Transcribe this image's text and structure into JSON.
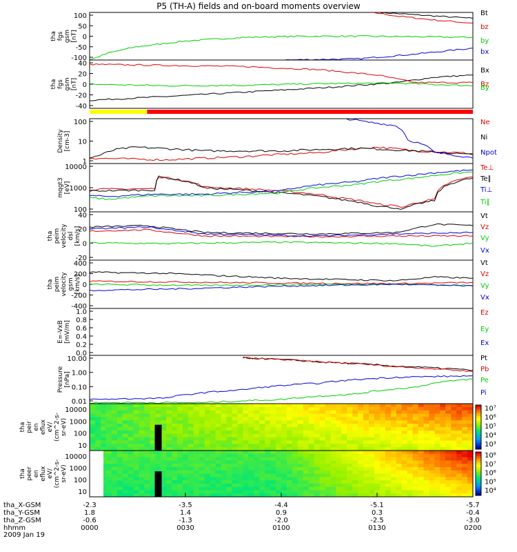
{
  "title": "P5 (TH-A) fields and on-board moments overview",
  "colors": {
    "black": "#000000",
    "red": "#dd0000",
    "green": "#00cc00",
    "blue": "#0000dd"
  },
  "chart_data": [
    {
      "type": "line",
      "id": "p1",
      "ylabel": [
        "tha",
        "fgs",
        "gsm",
        "[nT]"
      ],
      "yticks": [
        "100",
        "50",
        "0",
        "-50",
        "-100"
      ],
      "ylim": [
        -100,
        100
      ],
      "series": [
        {
          "name": "Bt",
          "color": "black",
          "points": [
            [
              0.76,
              100
            ],
            [
              0.85,
              90
            ],
            [
              0.93,
              82
            ],
            [
              1.0,
              75
            ]
          ]
        },
        {
          "name": "bz",
          "color": "red",
          "points": [
            [
              0.74,
              100
            ],
            [
              0.8,
              85
            ],
            [
              0.9,
              68
            ],
            [
              1.0,
              55
            ]
          ]
        },
        {
          "name": "by",
          "color": "green",
          "points": [
            [
              0,
              -100
            ],
            [
              0.05,
              -70
            ],
            [
              0.12,
              -45
            ],
            [
              0.25,
              -20
            ],
            [
              0.4,
              -5
            ],
            [
              0.55,
              0
            ],
            [
              0.7,
              0
            ],
            [
              0.85,
              -2
            ],
            [
              1.0,
              -5
            ]
          ]
        },
        {
          "name": "bx",
          "color": "blue",
          "points": [
            [
              0.5,
              -100
            ],
            [
              0.7,
              -95
            ],
            [
              0.85,
              -75
            ],
            [
              1.0,
              -50
            ]
          ]
        }
      ]
    },
    {
      "type": "line",
      "id": "p2",
      "ylabel": [
        "tha",
        "fgs",
        "gsm",
        "[nT]"
      ],
      "yticks": [
        "40",
        "20",
        "0",
        "-20",
        "-40"
      ],
      "ylim": [
        -50,
        40
      ],
      "series": [
        {
          "name": "Bx",
          "color": "black",
          "points": [
            [
              0,
              -35
            ],
            [
              0.2,
              -28
            ],
            [
              0.4,
              -20
            ],
            [
              0.6,
              -12
            ],
            [
              0.8,
              -2
            ],
            [
              0.9,
              8
            ],
            [
              1.0,
              12
            ]
          ]
        },
        {
          "name": "Bz",
          "color": "red",
          "points": [
            [
              0,
              32
            ],
            [
              0.2,
              30
            ],
            [
              0.4,
              28
            ],
            [
              0.6,
              22
            ],
            [
              0.75,
              12
            ],
            [
              0.85,
              -2
            ],
            [
              1.0,
              -2
            ]
          ]
        },
        {
          "name": "By",
          "color": "green",
          "points": [
            [
              0,
              -5
            ],
            [
              0.2,
              -8
            ],
            [
              0.4,
              -7
            ],
            [
              0.6,
              -4
            ],
            [
              0.8,
              -3
            ],
            [
              1.0,
              -8
            ]
          ]
        }
      ]
    },
    {
      "type": "line",
      "id": "p4",
      "ylabel": [
        "Density",
        "[cm-3]"
      ],
      "yticks": [
        "100",
        "10",
        "1"
      ],
      "log": true,
      "ylim": [
        0.5,
        150
      ],
      "series": [
        {
          "name": "Ne",
          "color": "red",
          "points": [
            [
              0,
              1.0
            ],
            [
              0.2,
              0.8
            ],
            [
              0.4,
              1.2
            ],
            [
              0.6,
              2.0
            ],
            [
              0.75,
              4.0
            ],
            [
              0.85,
              2.5
            ],
            [
              1.0,
              1.8
            ]
          ]
        },
        {
          "name": "Ni",
          "color": "black",
          "points": [
            [
              0,
              1.0
            ],
            [
              0.03,
              1.5
            ],
            [
              0.07,
              3
            ],
            [
              0.12,
              4
            ],
            [
              0.3,
              2.5
            ],
            [
              0.5,
              2.5
            ],
            [
              0.7,
              3.5
            ],
            [
              0.85,
              2.5
            ],
            [
              1.0,
              1.5
            ]
          ]
        },
        {
          "name": "Npot",
          "color": "blue",
          "points": [
            [
              0.67,
              150
            ],
            [
              0.72,
              100
            ],
            [
              0.8,
              60
            ],
            [
              0.83,
              10
            ],
            [
              0.9,
              2
            ],
            [
              1.0,
              1.0
            ]
          ]
        }
      ]
    },
    {
      "type": "line",
      "id": "p5",
      "ylabel": [
        "mqgt3",
        "[eV]"
      ],
      "yticks": [
        "10000",
        "1000",
        "100"
      ],
      "log": true,
      "ylim": [
        20,
        20000
      ],
      "series": [
        {
          "name": "Te⊥",
          "color": "red",
          "points": [
            [
              0,
              500
            ],
            [
              0.17,
              550
            ],
            [
              0.18,
              3000
            ],
            [
              0.3,
              700
            ],
            [
              0.5,
              400
            ],
            [
              0.65,
              150
            ],
            [
              0.75,
              60
            ],
            [
              0.82,
              40
            ],
            [
              0.9,
              120
            ],
            [
              1.0,
              3000
            ]
          ]
        },
        {
          "name": "Te∥",
          "color": "black",
          "points": [
            [
              0,
              400
            ],
            [
              0.17,
              450
            ],
            [
              0.18,
              3000
            ],
            [
              0.3,
              600
            ],
            [
              0.5,
              300
            ],
            [
              0.65,
              120
            ],
            [
              0.75,
              45
            ],
            [
              0.82,
              30
            ],
            [
              0.9,
              100
            ],
            [
              1.0,
              2500
            ]
          ]
        },
        {
          "name": "Ti⊥",
          "color": "blue",
          "points": [
            [
              0,
              200
            ],
            [
              0.05,
              180
            ],
            [
              0.17,
              250
            ],
            [
              0.3,
              250
            ],
            [
              0.5,
              400
            ],
            [
              0.7,
              1500
            ],
            [
              0.85,
              4000
            ],
            [
              1.0,
              8000
            ]
          ]
        },
        {
          "name": "Ti∥",
          "color": "green",
          "points": [
            [
              0,
              150
            ],
            [
              0.05,
              120
            ],
            [
              0.17,
              200
            ],
            [
              0.3,
              200
            ],
            [
              0.5,
              300
            ],
            [
              0.7,
              1000
            ],
            [
              0.85,
              2500
            ],
            [
              1.0,
              6000
            ]
          ]
        }
      ]
    },
    {
      "type": "line",
      "id": "p6",
      "ylabel": [
        "tha",
        "peim",
        "velocity",
        "dsl",
        "[km/s]"
      ],
      "yticks": [
        "40",
        "20",
        "0",
        "-20"
      ],
      "ylim": [
        -30,
        40
      ],
      "series": [
        {
          "name": "Vt",
          "color": "black",
          "points": [
            [
              0,
              18
            ],
            [
              0.15,
              20
            ],
            [
              0.3,
              10
            ],
            [
              0.6,
              8
            ],
            [
              0.8,
              10
            ],
            [
              0.9,
              22
            ],
            [
              1.0,
              20
            ]
          ]
        },
        {
          "name": "Vz",
          "color": "red",
          "points": [
            [
              0,
              12
            ],
            [
              0.15,
              14
            ],
            [
              0.3,
              5
            ],
            [
              0.6,
              4
            ],
            [
              0.8,
              5
            ],
            [
              1.0,
              5
            ]
          ]
        },
        {
          "name": "Vy",
          "color": "green",
          "points": [
            [
              0,
              -5
            ],
            [
              0.2,
              -6
            ],
            [
              0.5,
              -4
            ],
            [
              0.8,
              -6
            ],
            [
              0.9,
              -10
            ],
            [
              1.0,
              -5
            ]
          ]
        },
        {
          "name": "Vx",
          "color": "blue",
          "points": [
            [
              0,
              15
            ],
            [
              0.15,
              18
            ],
            [
              0.3,
              8
            ],
            [
              0.6,
              5
            ],
            [
              0.8,
              8
            ],
            [
              1.0,
              10
            ]
          ]
        }
      ]
    },
    {
      "type": "line",
      "id": "p7",
      "ylabel": [
        "tha",
        "peim",
        "velocity",
        "gsm",
        "[km/s]"
      ],
      "yticks": [
        "400",
        "200",
        "0",
        "-200",
        "-400"
      ],
      "ylim": [
        -400,
        400
      ],
      "series": [
        {
          "name": "Vt",
          "color": "black",
          "points": [
            [
              0,
              200
            ],
            [
              0.2,
              180
            ],
            [
              0.5,
              100
            ],
            [
              0.8,
              60
            ],
            [
              0.9,
              120
            ],
            [
              1.0,
              100
            ]
          ]
        },
        {
          "name": "Vz",
          "color": "red",
          "points": [
            [
              0,
              50
            ],
            [
              0.2,
              40
            ],
            [
              0.5,
              20
            ],
            [
              0.8,
              10
            ],
            [
              1.0,
              30
            ]
          ]
        },
        {
          "name": "Vy",
          "color": "green",
          "points": [
            [
              0,
              0
            ],
            [
              0.3,
              -20
            ],
            [
              0.6,
              0
            ],
            [
              0.8,
              0
            ],
            [
              1.0,
              -20
            ]
          ]
        },
        {
          "name": "Vx",
          "color": "blue",
          "points": [
            [
              0,
              -100
            ],
            [
              0.2,
              -80
            ],
            [
              0.5,
              -30
            ],
            [
              0.8,
              0
            ],
            [
              1.0,
              -30
            ]
          ]
        }
      ]
    },
    {
      "type": "line",
      "id": "p8",
      "ylabel": [
        "E=-VxB",
        "[mV/m]"
      ],
      "yticks": [
        "1.0",
        "0.8",
        "0.6",
        "0.4",
        "0.2",
        "0.0"
      ],
      "ylim": [
        0,
        1
      ],
      "series": [
        {
          "name": "Ez",
          "color": "red",
          "points": []
        },
        {
          "name": "Ey",
          "color": "green",
          "points": []
        },
        {
          "name": "Ex",
          "color": "blue",
          "points": []
        }
      ]
    },
    {
      "type": "line",
      "id": "p9",
      "ylabel": [
        "Pressure",
        "[nPa]"
      ],
      "yticks": [
        "10.00",
        "1.00",
        "0.10",
        "0.01"
      ],
      "log": true,
      "ylim": [
        0.01,
        30
      ],
      "series": [
        {
          "name": "Pt",
          "color": "black",
          "points": [
            [
              0.4,
              20
            ],
            [
              0.6,
              10
            ],
            [
              0.8,
              5
            ],
            [
              1.0,
              2.5
            ]
          ]
        },
        {
          "name": "Pb",
          "color": "red",
          "points": [
            [
              0.4,
              20
            ],
            [
              0.6,
              10
            ],
            [
              0.8,
              4.5
            ],
            [
              1.0,
              2.0
            ]
          ]
        },
        {
          "name": "Pe",
          "color": "green",
          "points": [
            [
              0,
              0.012
            ],
            [
              0.3,
              0.012
            ],
            [
              0.5,
              0.02
            ],
            [
              0.7,
              0.05
            ],
            [
              0.85,
              0.15
            ],
            [
              1.0,
              0.6
            ]
          ]
        },
        {
          "name": "Pi",
          "color": "blue",
          "points": [
            [
              0,
              0.02
            ],
            [
              0.2,
              0.025
            ],
            [
              0.4,
              0.1
            ],
            [
              0.6,
              0.3
            ],
            [
              0.8,
              0.8
            ],
            [
              1.0,
              1.0
            ]
          ]
        }
      ]
    }
  ],
  "spectra": [
    {
      "id": "s1",
      "ylabel": [
        "tha",
        "peir",
        "en",
        "eflux",
        "eV/",
        "(cm^2-s-",
        "sr-eV)"
      ],
      "yticks": [
        "10000",
        "1000",
        "100",
        "10"
      ],
      "cbar": [
        "10⁷",
        "10⁶",
        "10⁵",
        "10⁴",
        "10³"
      ]
    },
    {
      "id": "s2",
      "ylabel": [
        "tha",
        "peer",
        "en",
        "eflux",
        "eV/",
        "(cm^2-s-",
        "sr-eV)"
      ],
      "yticks": [
        "10000",
        "1000",
        "100",
        "10"
      ],
      "cbar": [
        "10⁸",
        "10⁷",
        "10⁶",
        "10⁵",
        "10⁴"
      ]
    }
  ],
  "xaxis": {
    "rows": [
      {
        "label": "tha_X-GSM",
        "values": [
          "-2.3",
          "-3.5",
          "-4.4",
          "-5.1",
          "-5.7"
        ]
      },
      {
        "label": "tha_Y-GSM",
        "values": [
          "1.8",
          "1.4",
          "0.9",
          "0.3",
          "-0.4"
        ]
      },
      {
        "label": "tha_Z-GSM",
        "values": [
          "-0.6",
          "-1.3",
          "-2.0",
          "-2.5",
          "-3.0"
        ]
      },
      {
        "label": "hhmm",
        "values": [
          "0000",
          "0030",
          "0100",
          "0130",
          "0200"
        ]
      }
    ],
    "date": "2009 Jan 19"
  },
  "mode_bar": {
    "segments": [
      {
        "color": "#ffff00",
        "to": 0.15
      },
      {
        "color": "#ff0000",
        "to": 1.0
      }
    ]
  }
}
